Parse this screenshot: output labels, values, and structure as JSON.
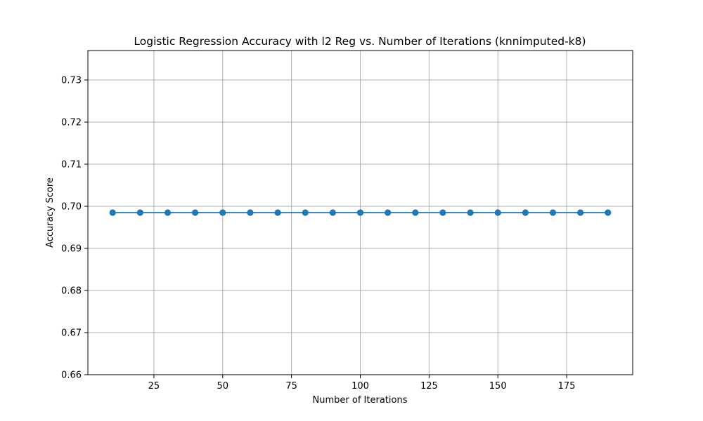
{
  "chart_data": {
    "type": "line",
    "title": "Logistic Regression Accuracy with l2 Reg vs. Number of Iterations (knnimputed-k8)",
    "xlabel": "Number of Iterations",
    "ylabel": "Accuracy Score",
    "x": [
      10,
      20,
      30,
      40,
      50,
      60,
      70,
      80,
      90,
      100,
      110,
      120,
      130,
      140,
      150,
      160,
      170,
      180,
      190
    ],
    "series": [
      {
        "values": [
          0.6985,
          0.6985,
          0.6985,
          0.6985,
          0.6985,
          0.6985,
          0.6985,
          0.6985,
          0.6985,
          0.6985,
          0.6985,
          0.6985,
          0.6985,
          0.6985,
          0.6985,
          0.6985,
          0.6985,
          0.6985,
          0.6985
        ],
        "color": "#1f77b4",
        "marker": "circle"
      }
    ],
    "xlim": [
      1,
      199
    ],
    "ylim": [
      0.66,
      0.737
    ],
    "xticks": [
      25,
      50,
      75,
      100,
      125,
      150,
      175
    ],
    "xtick_labels": [
      "25",
      "50",
      "75",
      "100",
      "125",
      "150",
      "175"
    ],
    "yticks": [
      0.66,
      0.67,
      0.68,
      0.69,
      0.7,
      0.71,
      0.72,
      0.73
    ],
    "ytick_labels": [
      "0.66",
      "0.67",
      "0.68",
      "0.69",
      "0.70",
      "0.71",
      "0.72",
      "0.73"
    ],
    "grid": true,
    "legend": "none"
  }
}
